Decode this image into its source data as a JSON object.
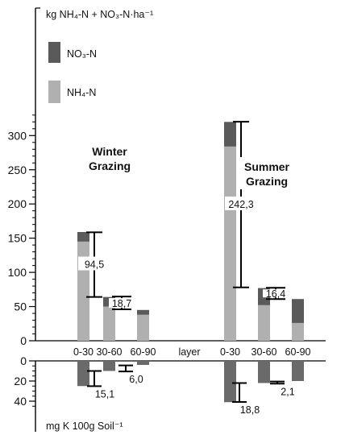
{
  "chart_data": {
    "type": "bar",
    "units_top": "kg NH₄-N + NO₃-N·ha⁻¹",
    "units_bottom": "mg K 100g Soil⁻¹",
    "x_axis_label": "layer",
    "legend": [
      {
        "name": "NO₃-N",
        "color": "#5a5a5a"
      },
      {
        "name": "NH₄-N",
        "color": "#b0b0b0"
      }
    ],
    "colors": {
      "no3": "#5a5a5a",
      "nh4": "#b0b0b0",
      "k": "#6a6a6a"
    },
    "top_axis": {
      "ylim": [
        0,
        340
      ],
      "ticks": [
        0,
        50,
        100,
        150,
        200,
        250,
        300
      ]
    },
    "bottom_axis": {
      "ylim": [
        0,
        40
      ],
      "ticks": [
        0,
        20,
        40
      ]
    },
    "groups": [
      {
        "name_line1": "Winter",
        "name_line2": "Grazing",
        "layers": [
          {
            "label": "0-30",
            "nh4": 145,
            "no3": 14,
            "k": 25
          },
          {
            "label": "30-60",
            "nh4": 50,
            "no3": 14,
            "k": 10
          },
          {
            "label": "60-90",
            "nh4": 38,
            "no3": 7,
            "k": 4
          }
        ],
        "lsd_top": [
          {
            "label": "94,5",
            "layer": 0,
            "low": 64,
            "high": 158.5
          },
          {
            "label": "18,7",
            "layer": 1,
            "low": 46,
            "high": 64.7
          }
        ],
        "lsd_bottom": [
          {
            "label": "15,1",
            "layer": 0,
            "low": 10,
            "high": 25.1
          },
          {
            "label": "6,0",
            "layer": 1,
            "low": 4.5,
            "high": 10.5
          }
        ]
      },
      {
        "name_line1": "Summer",
        "name_line2": "Grazing",
        "layers": [
          {
            "label": "0-30",
            "nh4": 284,
            "no3": 36,
            "k": 41
          },
          {
            "label": "30-60",
            "nh4": 52,
            "no3": 25,
            "k": 22
          },
          {
            "label": "60-90",
            "nh4": 26,
            "no3": 35,
            "k": 20
          }
        ],
        "lsd_top": [
          {
            "label": "242,3",
            "layer": 0,
            "low": 78,
            "high": 320.3
          },
          {
            "label": "16,4",
            "layer": 1,
            "low": 61,
            "high": 77.4
          }
        ],
        "lsd_bottom": [
          {
            "label": "18,8",
            "layer": 0,
            "low": 22,
            "high": 40.8
          },
          {
            "label": "2,1",
            "layer": 1,
            "low": 20.5,
            "high": 22.6
          }
        ]
      }
    ]
  }
}
